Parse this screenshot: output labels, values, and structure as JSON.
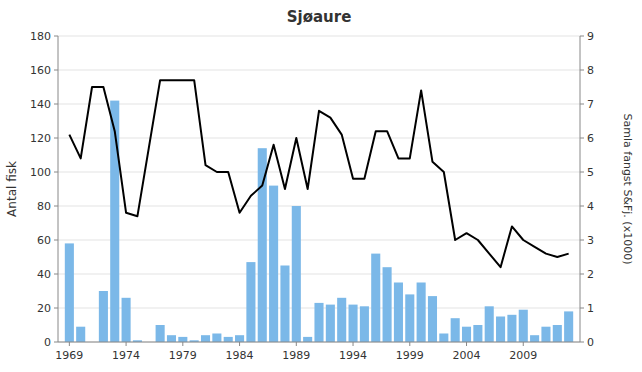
{
  "chart_data": {
    "type": "bar",
    "title": "Sjøaure",
    "ylabel": "Antal fisk",
    "y2label": "Samla fangst S&Fj. (x1000)",
    "x": [
      1969,
      1970,
      1971,
      1972,
      1973,
      1974,
      1975,
      1976,
      1977,
      1978,
      1979,
      1980,
      1981,
      1982,
      1983,
      1984,
      1985,
      1986,
      1987,
      1988,
      1989,
      1990,
      1991,
      1992,
      1993,
      1994,
      1995,
      1996,
      1997,
      1998,
      1999,
      2000,
      2001,
      2002,
      2003,
      2004,
      2005,
      2006,
      2007,
      2008,
      2009,
      2010,
      2011,
      2012,
      2013
    ],
    "series": [
      {
        "type": "bar",
        "color": "#7BB8E8",
        "values": [
          58,
          9,
          0,
          30,
          142,
          26,
          1,
          0,
          10,
          4,
          3,
          1,
          4,
          5,
          3,
          4,
          47,
          114,
          92,
          45,
          80,
          3,
          23,
          22,
          26,
          22,
          21,
          52,
          44,
          35,
          28,
          35,
          27,
          5,
          14,
          9,
          10,
          21,
          15,
          16,
          19,
          4,
          9,
          10,
          18
        ]
      },
      {
        "type": "line",
        "axis": "y2",
        "color": "#000000",
        "values": [
          6.1,
          5.4,
          7.5,
          7.5,
          6.2,
          3.8,
          3.7,
          5.7,
          7.7,
          7.7,
          7.7,
          7.7,
          5.2,
          5.0,
          5.0,
          3.8,
          4.3,
          4.6,
          5.8,
          4.5,
          6.0,
          4.5,
          6.8,
          6.6,
          6.1,
          4.8,
          4.8,
          6.2,
          6.2,
          5.4,
          5.4,
          7.4,
          5.3,
          5.0,
          3.0,
          3.2,
          3.0,
          2.6,
          2.2,
          3.4,
          3.0,
          2.8,
          2.6,
          2.5,
          2.6
        ]
      }
    ],
    "xlim": [
      1968.0,
      2014.0
    ],
    "xticks": [
      1969,
      1974,
      1979,
      1984,
      1989,
      1994,
      1999,
      2004,
      2009
    ],
    "ylim": [
      0,
      180
    ],
    "yticks": [
      0,
      20,
      40,
      60,
      80,
      100,
      120,
      140,
      160,
      180
    ],
    "y2lim": [
      0,
      9
    ],
    "y2ticks": [
      0,
      1,
      2,
      3,
      4,
      5,
      6,
      7,
      8,
      9
    ],
    "grid": true
  }
}
